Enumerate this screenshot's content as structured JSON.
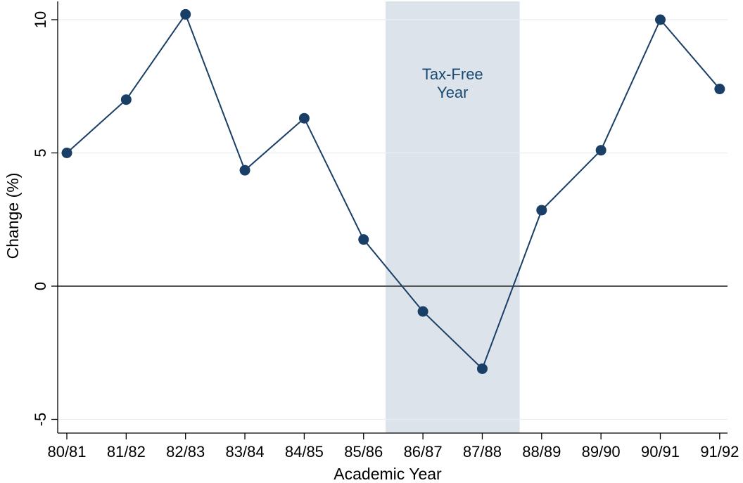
{
  "chart_data": {
    "type": "line",
    "xlabel": "Academic Year",
    "ylabel": "Change (%)",
    "categories": [
      "80/81",
      "81/82",
      "82/83",
      "83/84",
      "84/85",
      "85/86",
      "86/87",
      "87/88",
      "88/89",
      "89/90",
      "90/91",
      "91/92"
    ],
    "series": [
      {
        "values": [
          5.0,
          7.0,
          10.2,
          4.35,
          6.3,
          1.75,
          -0.95,
          -3.1,
          2.85,
          5.1,
          10.0,
          7.4
        ]
      }
    ],
    "yticks": [
      -5,
      0,
      5,
      10
    ],
    "ylim": [
      -5.7,
      10.7
    ],
    "grid": true,
    "reference_line_y": 0,
    "shaded_region": {
      "from": "85/86",
      "to": "88/89",
      "label_lines": [
        "Tax-Free",
        "Year"
      ]
    },
    "colors": {
      "line": "#1a3f66",
      "marker": "#1a3f66",
      "shade": "#dce3ea",
      "grid": "#e8eef2",
      "zero_line": "#555555",
      "annotation": "#1a4a72"
    }
  }
}
